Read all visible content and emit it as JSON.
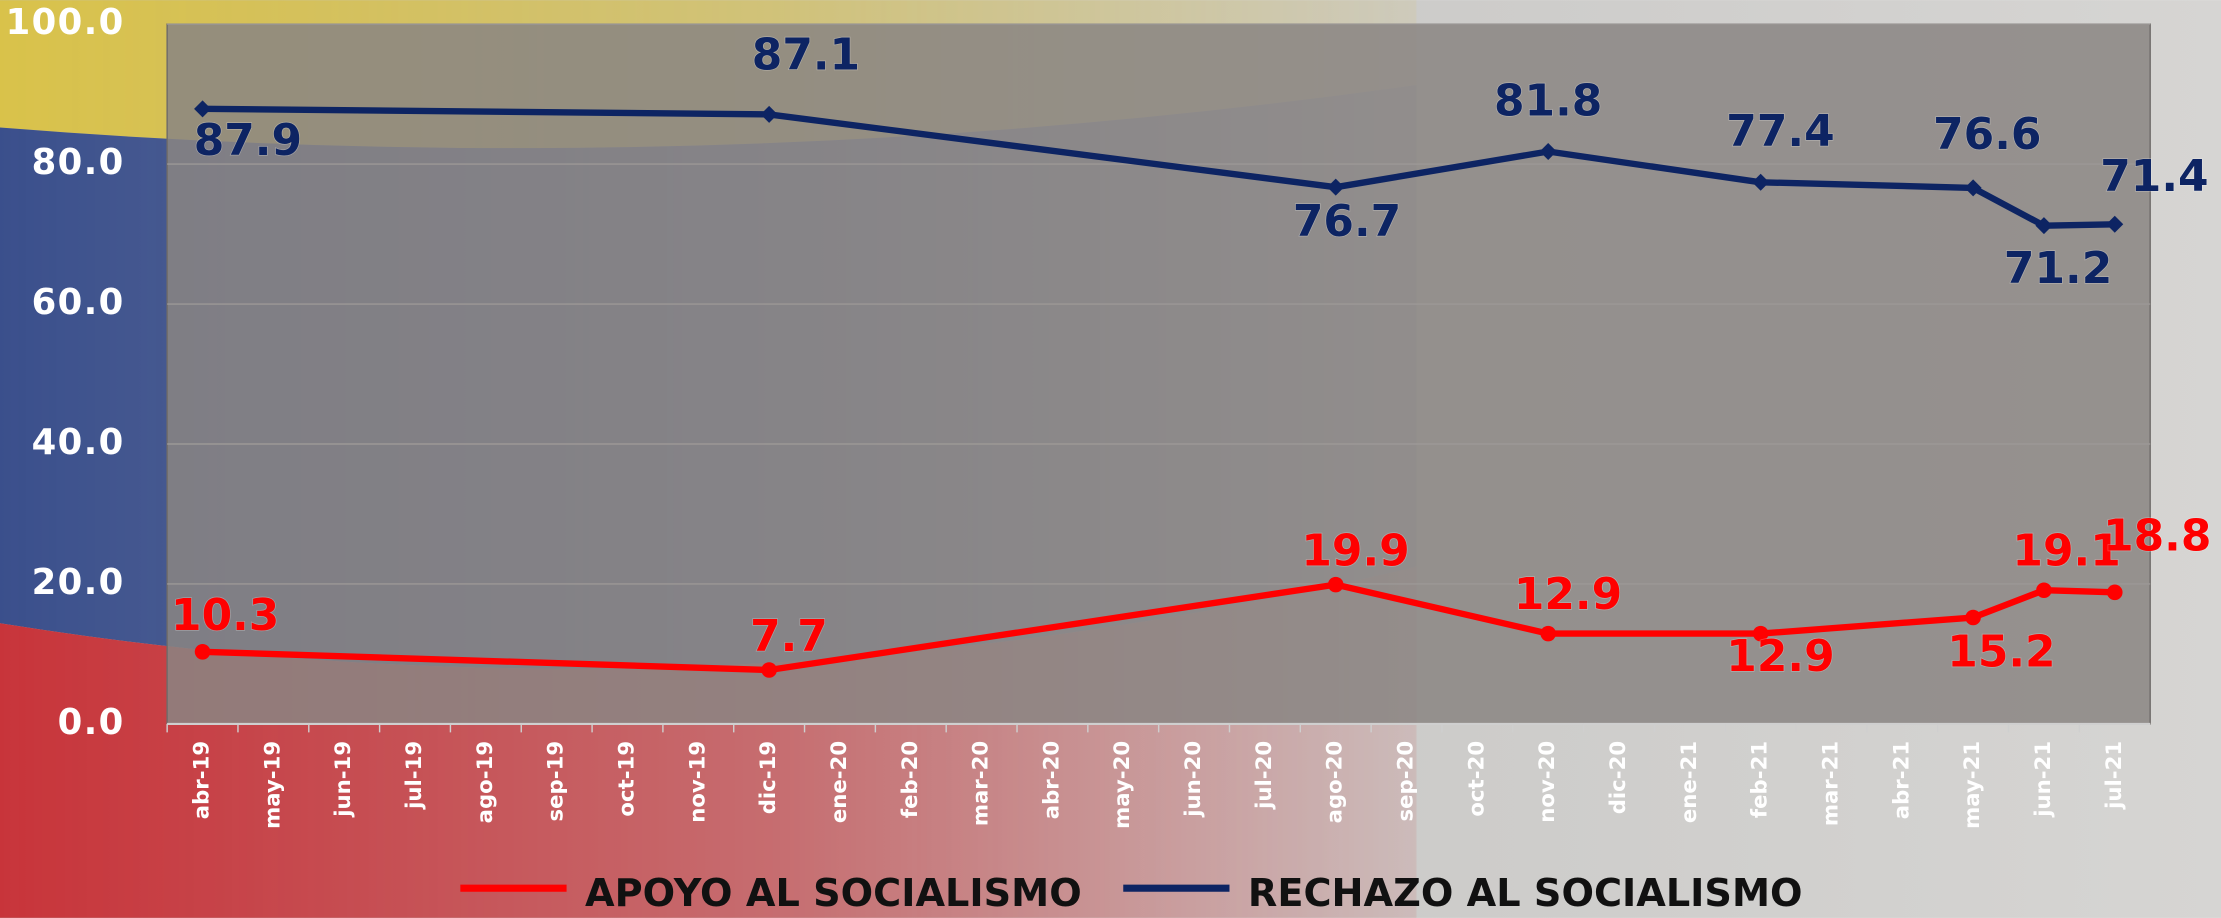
{
  "chart_data": {
    "type": "line",
    "categories": [
      "abr-19",
      "may-19",
      "jun-19",
      "jul-19",
      "ago-19",
      "sep-19",
      "oct-19",
      "nov-19",
      "dic-19",
      "ene-20",
      "feb-20",
      "mar-20",
      "abr-20",
      "may-20",
      "jun-20",
      "jul-20",
      "ago-20",
      "sep-20",
      "oct-20",
      "nov-20",
      "dic-20",
      "ene-21",
      "feb-21",
      "mar-21",
      "abr-21",
      "may-21",
      "jun-21",
      "jul-21"
    ],
    "x": [
      "abr-19",
      "dic-19",
      "ago-20",
      "nov-20",
      "feb-21",
      "may-21",
      "jun-21",
      "jul-21"
    ],
    "series": [
      {
        "name": "APOYO AL SOCIALISMO",
        "color": "#ff0000",
        "values": [
          10.3,
          7.7,
          19.9,
          12.9,
          12.9,
          15.2,
          19.1,
          18.8
        ]
      },
      {
        "name": "RECHAZO AL SOCIALISMO",
        "color": "#0d2463",
        "values": [
          87.9,
          87.1,
          76.7,
          81.8,
          77.4,
          76.6,
          71.2,
          71.4
        ]
      }
    ],
    "ylim": [
      0,
      100
    ],
    "yticks": [
      {
        "value": 0,
        "label": "0.0"
      },
      {
        "value": 20,
        "label": "20.0"
      },
      {
        "value": 40,
        "label": "40.0"
      },
      {
        "value": 60,
        "label": "60.0"
      },
      {
        "value": 80,
        "label": "80.0"
      },
      {
        "value": 100,
        "label": "100.0"
      }
    ],
    "grid": true
  }
}
